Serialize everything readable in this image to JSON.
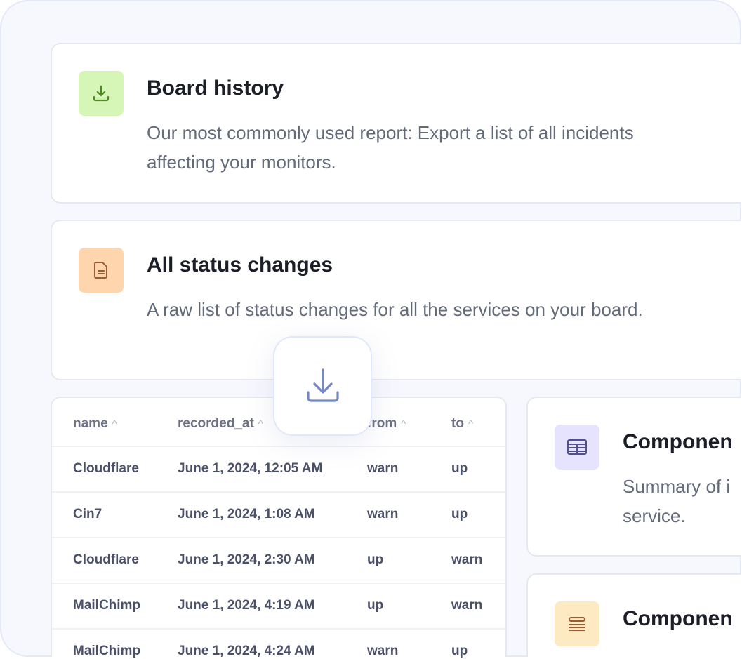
{
  "cards": [
    {
      "title": "Board history",
      "desc_lines": [
        "Our most commonly used report: Export a list of all incidents",
        "affecting your monitors."
      ],
      "icon": "download-icon",
      "icon_bg": "#d6f6b7",
      "icon_color": "#4f8a22"
    },
    {
      "title": "All status changes",
      "desc_lines": [
        "A raw list of status changes for all the services on your board."
      ],
      "icon": "document-icon",
      "icon_bg": "#ffd5ae",
      "icon_color": "#9a5c33"
    },
    {
      "title": "Componen",
      "desc_lines": [
        "Summary of i",
        "service."
      ],
      "icon": "table-icon",
      "icon_bg": "#e5e3fd",
      "icon_color": "#4f4f93"
    },
    {
      "title": "Componen",
      "desc_lines": [],
      "icon": "stack-icon",
      "icon_bg": "#feeac2",
      "icon_color": "#9a5c33"
    }
  ],
  "table": {
    "columns": [
      "name",
      "recorded_at",
      "from",
      "to"
    ],
    "rows": [
      [
        "Cloudflare",
        "June 1, 2024, 12:05 AM",
        "warn",
        "up"
      ],
      [
        "Cin7",
        "June 1, 2024, 1:08 AM",
        "warn",
        "up"
      ],
      [
        "Cloudflare",
        "June 1, 2024, 2:30 AM",
        "up",
        "warn"
      ],
      [
        "MailChimp",
        "June 1, 2024, 4:19 AM",
        "up",
        "warn"
      ],
      [
        "MailChimp",
        "June 1, 2024, 4:24 AM",
        "warn",
        "up"
      ]
    ]
  },
  "download_button": {
    "icon": "download-icon",
    "color": "#7388c4"
  }
}
